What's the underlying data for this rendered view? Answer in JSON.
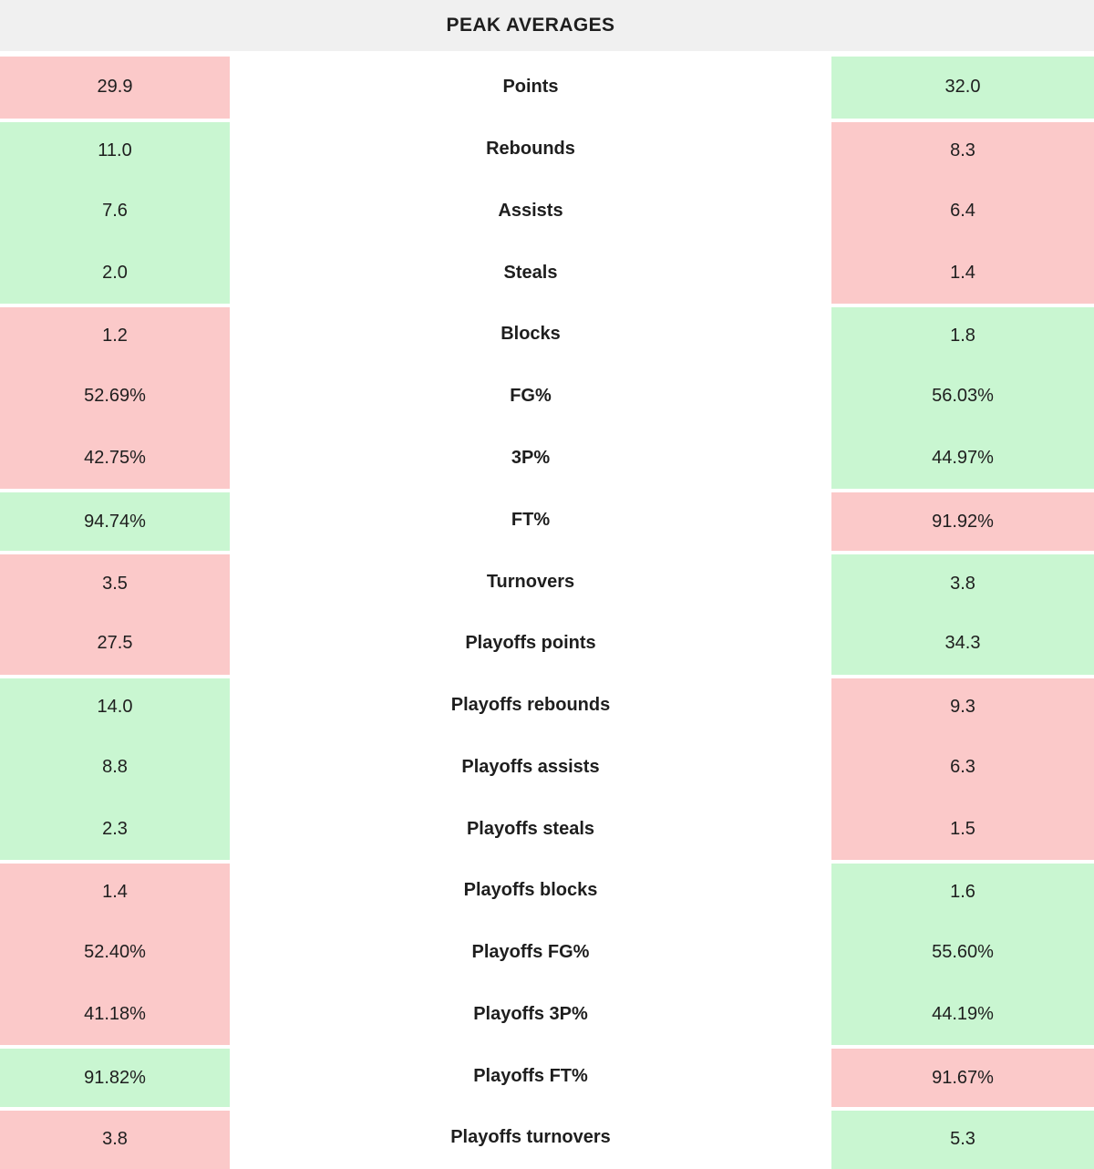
{
  "header": {
    "title": "PEAK AVERAGES"
  },
  "colors": {
    "good": "#c9f6d1",
    "bad": "#fbc9c9",
    "header_bg": "#f0f0f0",
    "text": "#1e1e1e"
  },
  "chart_data": {
    "type": "table",
    "title": "PEAK AVERAGES",
    "columns": [
      "left_value",
      "stat_label",
      "right_value"
    ],
    "legend": {
      "good_color_meaning": "better value (green)",
      "bad_color_meaning": "worse value (red)"
    },
    "rows": [
      {
        "label": "Points",
        "left": "29.9",
        "left_color": "bad",
        "right": "32.0",
        "right_color": "good"
      },
      {
        "label": "Rebounds",
        "left": "11.0",
        "left_color": "good",
        "right": "8.3",
        "right_color": "bad"
      },
      {
        "label": "Assists",
        "left": "7.6",
        "left_color": "good",
        "right": "6.4",
        "right_color": "bad"
      },
      {
        "label": "Steals",
        "left": "2.0",
        "left_color": "good",
        "right": "1.4",
        "right_color": "bad"
      },
      {
        "label": "Blocks",
        "left": "1.2",
        "left_color": "bad",
        "right": "1.8",
        "right_color": "good"
      },
      {
        "label": "FG%",
        "left": "52.69%",
        "left_color": "bad",
        "right": "56.03%",
        "right_color": "good"
      },
      {
        "label": "3P%",
        "left": "42.75%",
        "left_color": "bad",
        "right": "44.97%",
        "right_color": "good"
      },
      {
        "label": "FT%",
        "left": "94.74%",
        "left_color": "good",
        "right": "91.92%",
        "right_color": "bad"
      },
      {
        "label": "Turnovers",
        "left": "3.5",
        "left_color": "bad",
        "right": "3.8",
        "right_color": "good"
      },
      {
        "label": "Playoffs points",
        "left": "27.5",
        "left_color": "bad",
        "right": "34.3",
        "right_color": "good"
      },
      {
        "label": "Playoffs rebounds",
        "left": "14.0",
        "left_color": "good",
        "right": "9.3",
        "right_color": "bad"
      },
      {
        "label": "Playoffs assists",
        "left": "8.8",
        "left_color": "good",
        "right": "6.3",
        "right_color": "bad"
      },
      {
        "label": "Playoffs steals",
        "left": "2.3",
        "left_color": "good",
        "right": "1.5",
        "right_color": "bad"
      },
      {
        "label": "Playoffs blocks",
        "left": "1.4",
        "left_color": "bad",
        "right": "1.6",
        "right_color": "good"
      },
      {
        "label": "Playoffs FG%",
        "left": "52.40%",
        "left_color": "bad",
        "right": "55.60%",
        "right_color": "good"
      },
      {
        "label": "Playoffs 3P%",
        "left": "41.18%",
        "left_color": "bad",
        "right": "44.19%",
        "right_color": "good"
      },
      {
        "label": "Playoffs FT%",
        "left": "91.82%",
        "left_color": "good",
        "right": "91.67%",
        "right_color": "bad"
      },
      {
        "label": "Playoffs turnovers",
        "left": "3.8",
        "left_color": "bad",
        "right": "5.3",
        "right_color": "good"
      }
    ]
  }
}
